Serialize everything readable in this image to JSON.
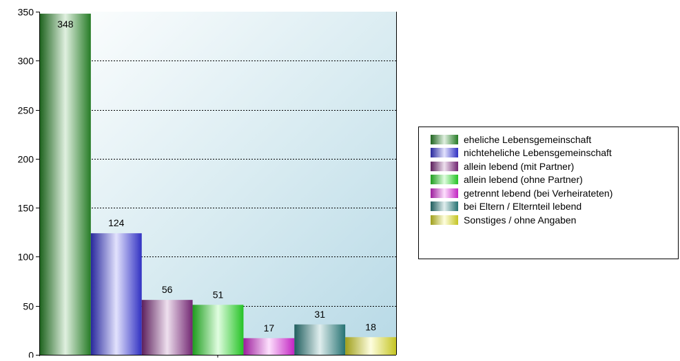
{
  "chart_data": {
    "type": "bar",
    "title": "",
    "xlabel": "",
    "ylabel": "",
    "ylim": [
      0,
      350
    ],
    "yticks": [
      "0",
      "50",
      "100",
      "150",
      "200",
      "250",
      "300",
      "350"
    ],
    "grid": true,
    "legend_position": "right",
    "series": [
      {
        "name": "eheliche Lebensgemeinschaft",
        "value": 348,
        "label": "348",
        "color": "#2f9a2f"
      },
      {
        "name": "nichteheliche Lebensgemeinschaft",
        "value": 124,
        "label": "124",
        "color": "#3d3df2"
      },
      {
        "name": "allein lebend (mit Partner)",
        "value": 56,
        "label": "56",
        "color": "#8e2f8e"
      },
      {
        "name": "allein lebend (ohne Partner)",
        "value": 51,
        "label": "51",
        "color": "#2ef22e"
      },
      {
        "name": "getrennt lebend (bei Verheirateten)",
        "value": 17,
        "label": "17",
        "color": "#f22ef2"
      },
      {
        "name": "bei Eltern / Elternteil lebend",
        "value": 31,
        "label": "31",
        "color": "#2f8f8f"
      },
      {
        "name": "Sonstiges / ohne Angaben",
        "value": 18,
        "label": "18",
        "color": "#f5f52a"
      }
    ]
  }
}
